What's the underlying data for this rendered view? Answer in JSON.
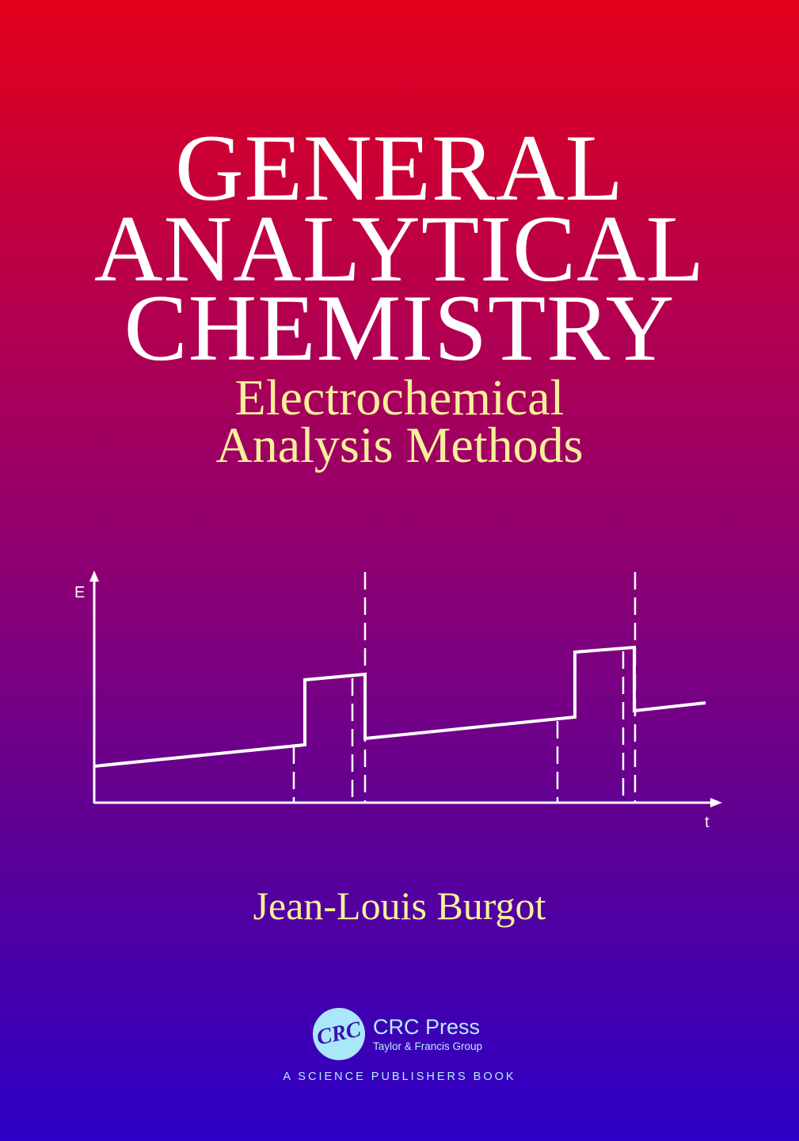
{
  "cover": {
    "title_lines": [
      "GENERAL",
      "ANALYTICAL",
      "CHEMISTRY"
    ],
    "subtitle_lines": [
      "Electrochemical",
      "Analysis Methods"
    ],
    "author": "Jean-Louis Burgot"
  },
  "figure": {
    "y_axis_label": "E",
    "x_axis_label": "t"
  },
  "publisher": {
    "logo_text": "CRC",
    "name": "CRC Press",
    "group": "Taylor & Francis Group",
    "tagline": "A SCIENCE PUBLISHERS BOOK"
  },
  "colors": {
    "top": "#e2001a",
    "bottom": "#2c00c6",
    "title": "#ffffff",
    "subtitle": "#f6f09a",
    "publisher": "#b8ecfa"
  }
}
